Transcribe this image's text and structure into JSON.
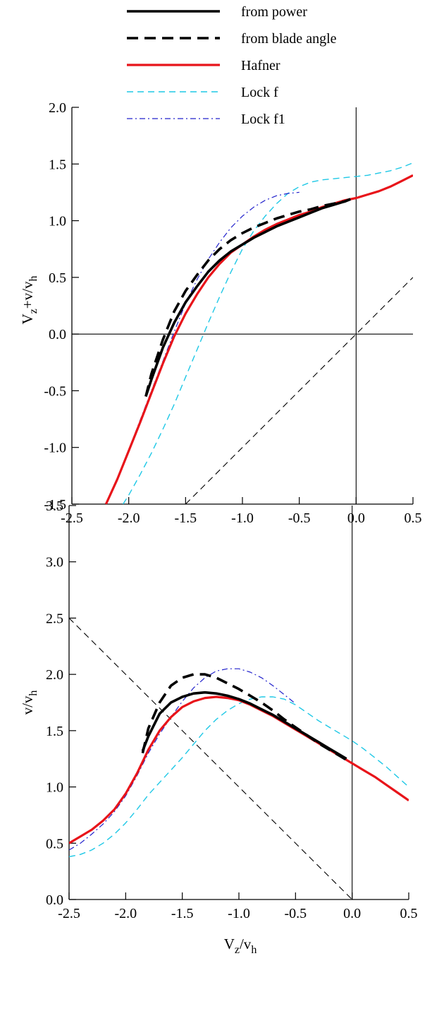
{
  "legend": {
    "entries": [
      {
        "label": "from power",
        "color": "#000000",
        "style": "solid-thick"
      },
      {
        "label": "from blade angle",
        "color": "#000000",
        "style": "dashed-thick"
      },
      {
        "label": "Hafner",
        "color": "#e8141a",
        "style": "solid-red"
      },
      {
        "label": "Lock f",
        "color": "#1ec8e6",
        "style": "dashed-thin"
      },
      {
        "label": "Lock f1",
        "color": "#2222cc",
        "style": "dashdot-thin"
      }
    ]
  },
  "chart_data": [
    {
      "type": "line",
      "ylabel": "Vz+v/vh",
      "ylabel_parts": {
        "main": "V",
        "sub1": "z",
        "mid": "+v/v",
        "sub2": "h"
      },
      "xlabel": "",
      "xlim": [
        -2.5,
        0.5
      ],
      "ylim": [
        -1.5,
        2.0
      ],
      "xticks": [
        "-2.5",
        "-2.0",
        "-1.5",
        "-1.0",
        "-0.5",
        "0.0",
        "0.5"
      ],
      "yticks": [
        "-1.5",
        "-1.0",
        "-0.5",
        "0.0",
        "0.5",
        "1.0",
        "1.5",
        "2.0"
      ],
      "reference_lines": [
        {
          "kind": "horizontal",
          "value": 0.0
        },
        {
          "kind": "vertical",
          "value": 0.0
        },
        {
          "kind": "diagonal-dashed",
          "points": [
            [
              -1.5,
              -1.5
            ],
            [
              0.5,
              0.5
            ]
          ]
        }
      ],
      "series": [
        {
          "name": "from power",
          "x": [
            -1.85,
            -1.8,
            -1.7,
            -1.6,
            -1.5,
            -1.4,
            -1.3,
            -1.2,
            -1.1,
            -1.0,
            -0.9,
            -0.8,
            -0.7,
            -0.6,
            -0.5,
            -0.4,
            -0.3,
            -0.2,
            -0.1,
            -0.05
          ],
          "y": [
            -0.55,
            -0.4,
            -0.12,
            0.1,
            0.28,
            0.42,
            0.55,
            0.65,
            0.73,
            0.79,
            0.85,
            0.9,
            0.95,
            0.99,
            1.03,
            1.07,
            1.11,
            1.14,
            1.17,
            1.19
          ]
        },
        {
          "name": "from blade angle",
          "x": [
            -1.85,
            -1.8,
            -1.7,
            -1.6,
            -1.5,
            -1.4,
            -1.3,
            -1.2,
            -1.1,
            -1.0,
            -0.9,
            -0.8,
            -0.7,
            -0.6,
            -0.5,
            -0.4,
            -0.3,
            -0.2,
            -0.1,
            -0.05
          ],
          "y": [
            -0.55,
            -0.35,
            -0.05,
            0.2,
            0.38,
            0.52,
            0.65,
            0.75,
            0.83,
            0.89,
            0.94,
            0.98,
            1.02,
            1.05,
            1.08,
            1.1,
            1.13,
            1.15,
            1.17,
            1.19
          ]
        },
        {
          "name": "Hafner",
          "x": [
            -2.2,
            -2.1,
            -2.0,
            -1.9,
            -1.8,
            -1.7,
            -1.6,
            -1.5,
            -1.4,
            -1.3,
            -1.2,
            -1.1,
            -1.0,
            -0.9,
            -0.8,
            -0.7,
            -0.6,
            -0.5,
            -0.4,
            -0.3,
            -0.2,
            -0.1,
            0.0,
            0.1,
            0.2,
            0.3,
            0.4,
            0.5
          ],
          "y": [
            -1.5,
            -1.28,
            -1.03,
            -0.78,
            -0.52,
            -0.26,
            -0.02,
            0.18,
            0.35,
            0.5,
            0.62,
            0.72,
            0.79,
            0.86,
            0.92,
            0.97,
            1.01,
            1.05,
            1.08,
            1.12,
            1.15,
            1.18,
            1.2,
            1.23,
            1.26,
            1.3,
            1.35,
            1.4
          ]
        },
        {
          "name": "Lock f",
          "x": [
            -2.05,
            -2.0,
            -1.9,
            -1.8,
            -1.7,
            -1.6,
            -1.5,
            -1.4,
            -1.3,
            -1.2,
            -1.1,
            -1.0,
            -0.9,
            -0.8,
            -0.7,
            -0.6,
            -0.5,
            -0.4,
            -0.3,
            -0.2,
            -0.1,
            0.0,
            0.1,
            0.2,
            0.3,
            0.4,
            0.5
          ],
          "y": [
            -1.5,
            -1.42,
            -1.24,
            -1.05,
            -0.84,
            -0.62,
            -0.38,
            -0.14,
            0.1,
            0.33,
            0.55,
            0.75,
            0.91,
            1.04,
            1.15,
            1.24,
            1.3,
            1.34,
            1.36,
            1.37,
            1.38,
            1.39,
            1.4,
            1.42,
            1.44,
            1.47,
            1.51
          ]
        },
        {
          "name": "Lock f1",
          "x": [
            -2.2,
            -2.1,
            -2.0,
            -1.9,
            -1.8,
            -1.7,
            -1.6,
            -1.5,
            -1.4,
            -1.3,
            -1.2,
            -1.1,
            -1.0,
            -0.9,
            -0.8,
            -0.7,
            -0.6,
            -0.5
          ],
          "y": [
            -1.5,
            -1.28,
            -1.02,
            -0.76,
            -0.5,
            -0.24,
            0.02,
            0.27,
            0.48,
            0.66,
            0.81,
            0.94,
            1.04,
            1.12,
            1.18,
            1.22,
            1.24,
            1.25
          ]
        }
      ]
    },
    {
      "type": "line",
      "ylabel": "v/vh",
      "ylabel_parts": {
        "main": "v/v",
        "sub1": "h"
      },
      "xlabel": "Vz/vh",
      "xlabel_parts": {
        "main": "V",
        "sub1": "z",
        "mid": "/v",
        "sub2": "h"
      },
      "xlim": [
        -2.5,
        0.5
      ],
      "ylim": [
        0.0,
        3.5
      ],
      "xticks": [
        "-2.5",
        "-2.0",
        "-1.5",
        "-1.0",
        "-0.5",
        "0.0",
        "0.5"
      ],
      "yticks": [
        "0.0",
        "0.5",
        "1.0",
        "1.5",
        "2.0",
        "2.5",
        "3.0",
        "3.5"
      ],
      "reference_lines": [
        {
          "kind": "vertical",
          "value": 0.0
        },
        {
          "kind": "diagonal-dashed",
          "points": [
            [
              -2.5,
              2.5
            ],
            [
              0.0,
              0.0
            ]
          ]
        }
      ],
      "series": [
        {
          "name": "from power",
          "x": [
            -1.85,
            -1.8,
            -1.7,
            -1.6,
            -1.5,
            -1.4,
            -1.3,
            -1.2,
            -1.1,
            -1.0,
            -0.9,
            -0.8,
            -0.7,
            -0.6,
            -0.5,
            -0.4,
            -0.3,
            -0.2,
            -0.1,
            -0.05
          ],
          "y": [
            1.32,
            1.45,
            1.65,
            1.75,
            1.8,
            1.83,
            1.84,
            1.83,
            1.81,
            1.78,
            1.74,
            1.69,
            1.64,
            1.58,
            1.52,
            1.46,
            1.4,
            1.34,
            1.28,
            1.25
          ]
        },
        {
          "name": "from blade angle",
          "x": [
            -1.85,
            -1.8,
            -1.7,
            -1.6,
            -1.5,
            -1.4,
            -1.3,
            -1.2,
            -1.1,
            -1.0,
            -0.9,
            -0.8,
            -0.7,
            -0.6,
            -0.5,
            -0.4,
            -0.3,
            -0.2,
            -0.1,
            -0.05
          ],
          "y": [
            1.3,
            1.52,
            1.75,
            1.9,
            1.97,
            2.0,
            2.0,
            1.97,
            1.92,
            1.87,
            1.81,
            1.75,
            1.68,
            1.6,
            1.53,
            1.46,
            1.39,
            1.33,
            1.27,
            1.24
          ]
        },
        {
          "name": "Hafner",
          "x": [
            -2.5,
            -2.4,
            -2.3,
            -2.2,
            -2.1,
            -2.0,
            -1.9,
            -1.8,
            -1.7,
            -1.6,
            -1.5,
            -1.4,
            -1.3,
            -1.2,
            -1.1,
            -1.0,
            -0.9,
            -0.8,
            -0.7,
            -0.6,
            -0.5,
            -0.4,
            -0.3,
            -0.2,
            -0.1,
            0.0,
            0.1,
            0.2,
            0.3,
            0.4,
            0.5
          ],
          "y": [
            0.5,
            0.56,
            0.62,
            0.7,
            0.8,
            0.94,
            1.12,
            1.33,
            1.5,
            1.62,
            1.71,
            1.76,
            1.79,
            1.8,
            1.79,
            1.77,
            1.73,
            1.68,
            1.63,
            1.57,
            1.51,
            1.45,
            1.39,
            1.33,
            1.27,
            1.21,
            1.15,
            1.09,
            1.02,
            0.95,
            0.88
          ]
        },
        {
          "name": "Lock f",
          "x": [
            -2.5,
            -2.4,
            -2.3,
            -2.2,
            -2.1,
            -2.0,
            -1.9,
            -1.8,
            -1.7,
            -1.6,
            -1.5,
            -1.4,
            -1.3,
            -1.2,
            -1.1,
            -1.0,
            -0.9,
            -0.8,
            -0.7,
            -0.6,
            -0.5,
            -0.4,
            -0.3,
            -0.2,
            -0.1,
            0.0,
            0.1,
            0.2,
            0.3,
            0.4,
            0.5
          ],
          "y": [
            0.38,
            0.4,
            0.44,
            0.5,
            0.58,
            0.68,
            0.8,
            0.93,
            1.04,
            1.15,
            1.26,
            1.38,
            1.5,
            1.6,
            1.68,
            1.74,
            1.78,
            1.8,
            1.8,
            1.78,
            1.73,
            1.66,
            1.59,
            1.53,
            1.47,
            1.41,
            1.34,
            1.26,
            1.18,
            1.09,
            1.0
          ]
        },
        {
          "name": "Lock f1",
          "x": [
            -2.5,
            -2.4,
            -2.3,
            -2.2,
            -2.1,
            -2.0,
            -1.9,
            -1.8,
            -1.7,
            -1.6,
            -1.5,
            -1.4,
            -1.3,
            -1.2,
            -1.1,
            -1.0,
            -0.9,
            -0.8,
            -0.7,
            -0.6,
            -0.5
          ],
          "y": [
            0.44,
            0.5,
            0.58,
            0.67,
            0.78,
            0.92,
            1.1,
            1.3,
            1.47,
            1.62,
            1.76,
            1.88,
            1.97,
            2.03,
            2.05,
            2.05,
            2.02,
            1.97,
            1.9,
            1.82,
            1.74
          ]
        }
      ]
    }
  ]
}
